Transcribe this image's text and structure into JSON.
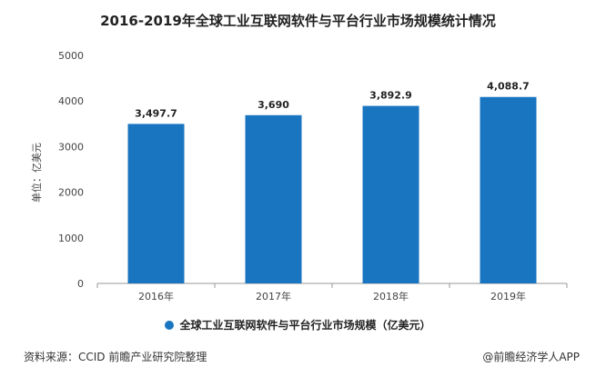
{
  "chart_data": {
    "type": "bar",
    "title": "2016-2019年全球工业互联网软件与平台行业市场规模统计情况",
    "categories": [
      "2016年",
      "2017年",
      "2018年",
      "2019年"
    ],
    "values": [
      3497.7,
      3690,
      3892.9,
      4088.7
    ],
    "data_labels": [
      "3,497.7",
      "3,690",
      "3,892.9",
      "4,088.7"
    ],
    "ylabel": "单位：亿美元",
    "xlabel": "",
    "ylim": [
      0,
      5000
    ],
    "yticks": [
      0,
      1000,
      2000,
      3000,
      4000,
      5000
    ],
    "grid": false,
    "legend": {
      "label": "全球工业互联网软件与平台行业市场规模（亿美元）",
      "placement": "bottom"
    },
    "bar_color": "#1a75c0"
  },
  "footer": {
    "source": "资料来源：CCID 前瞻产业研究院整理",
    "credit": "@前瞻经济学人APP"
  }
}
